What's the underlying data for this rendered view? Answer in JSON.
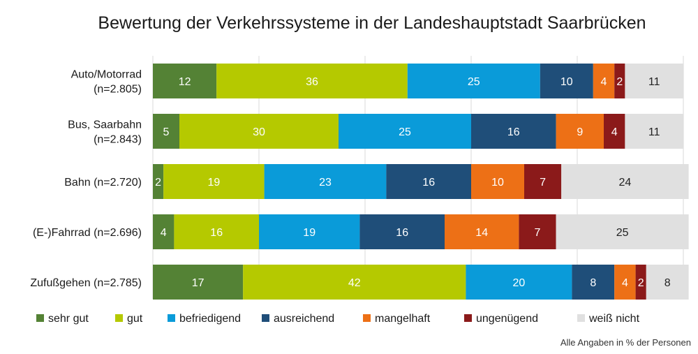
{
  "colors": {
    "sehr_gut": "#548235",
    "gut": "#b5c900",
    "befriedigend": "#0a9bd9",
    "ausreichend": "#1f4e79",
    "mangelhaft": "#ed7016",
    "ungenuegend": "#8b1a1a",
    "weiss_nicht": "#e0e0e0",
    "label_light": "#ffffff",
    "label_dark": "#222222"
  },
  "chart_data": {
    "type": "bar",
    "orientation": "horizontal",
    "stacked": true,
    "title": "Bewertung der Verkehrssysteme in der Landeshauptstadt Saarbrücken",
    "note": "Alle Angaben in % der Personen",
    "categories": [
      [
        "Auto/Motorrad",
        "(n=2.805)"
      ],
      [
        "Bus, Saarbahn",
        "(n=2.843)"
      ],
      [
        "Bahn (n=2.720)"
      ],
      [
        "(E-)Fahrrad (n=2.696)"
      ],
      [
        "Zufußgehen (n=2.785)"
      ]
    ],
    "xlim": [
      0,
      100
    ],
    "grid": true,
    "legend_position": "bottom",
    "series": [
      {
        "name": "sehr gut",
        "color_key": "sehr_gut",
        "values": [
          12,
          5,
          2,
          4,
          17
        ]
      },
      {
        "name": "gut",
        "color_key": "gut",
        "values": [
          36,
          30,
          19,
          16,
          42
        ]
      },
      {
        "name": "befriedigend",
        "color_key": "befriedigend",
        "values": [
          25,
          25,
          23,
          19,
          20
        ]
      },
      {
        "name": "ausreichend",
        "color_key": "ausreichend",
        "values": [
          10,
          16,
          16,
          16,
          8
        ]
      },
      {
        "name": "mangelhaft",
        "color_key": "mangelhaft",
        "values": [
          4,
          9,
          10,
          14,
          4
        ]
      },
      {
        "name": "ungenügend",
        "color_key": "ungenuegend",
        "values": [
          2,
          4,
          7,
          7,
          2
        ]
      },
      {
        "name": "weiß nicht",
        "color_key": "weiss_nicht",
        "values": [
          11,
          11,
          24,
          25,
          8
        ]
      }
    ]
  }
}
